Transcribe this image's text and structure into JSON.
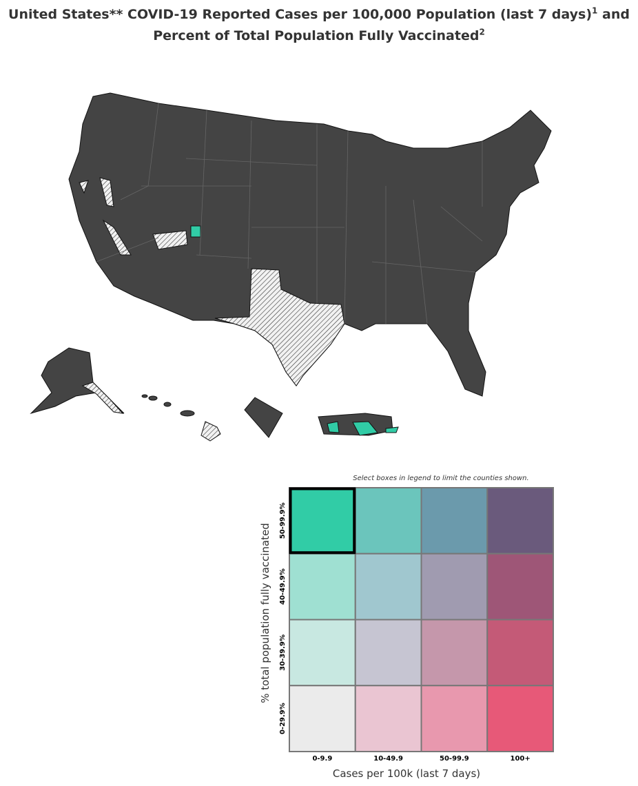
{
  "title": {
    "line1": "United States** COVID-19 Reported Cases per 100,000 Population (last 7 days)",
    "sup1": "1",
    "line1_end": "and",
    "line2": "Percent of Total Population Fully Vaccinated",
    "sup2": "2"
  },
  "legend": {
    "note": "Select boxes in legend to limit the counties shown.",
    "x_label": "Cases per 100k (last 7 days)",
    "y_label": "% total population fully vaccinated",
    "columns": [
      "0-9.9",
      "10-49.9",
      "50-99.9",
      "100+"
    ],
    "rows": [
      "50-99.9%",
      "40-49.9%",
      "30-39.9%",
      "0-29.9%"
    ],
    "colors": [
      [
        "#31cca6",
        "#6bc5bc",
        "#6b9aac",
        "#6a5a7c"
      ],
      [
        "#9fe0d2",
        "#a0c7cf",
        "#a09bb0",
        "#9e5677"
      ],
      [
        "#c8e8e1",
        "#c6c5d2",
        "#c597ab",
        "#c45a77"
      ],
      [
        "#ebebeb",
        "#eac5d2",
        "#e898ae",
        "#e75978"
      ]
    ],
    "selected": [
      0,
      0
    ]
  }
}
